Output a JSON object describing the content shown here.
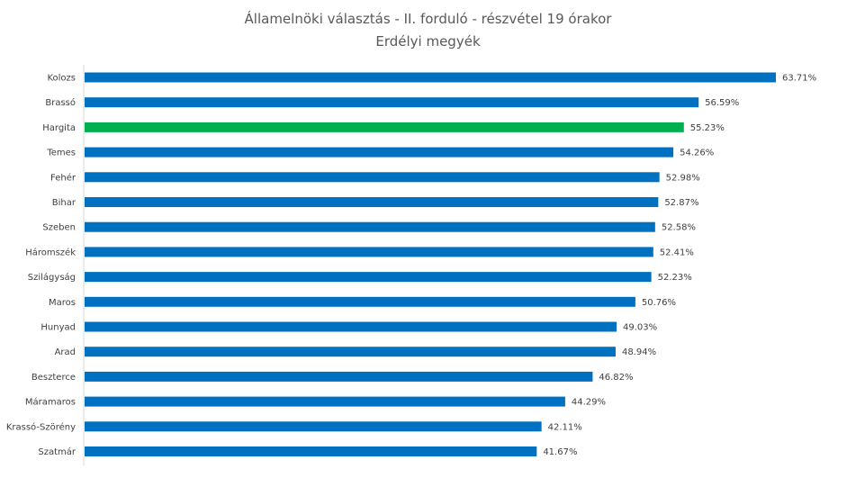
{
  "chart_data": {
    "type": "bar",
    "orientation": "horizontal",
    "title": "Államelnöki választás - II. forduló - részvétel 19 órakor",
    "subtitle": "Erdélyi megyék",
    "categories": [
      "Kolozs",
      "Brassó",
      "Hargita",
      "Temes",
      "Fehér",
      "Bihar",
      "Szeben",
      "Háromszék",
      "Szilágyság",
      "Maros",
      "Hunyad",
      "Arad",
      "Beszterce",
      "Máramaros",
      "Krassó-Szörény",
      "Szatmár"
    ],
    "values": [
      63.71,
      56.59,
      55.23,
      54.26,
      52.98,
      52.87,
      52.58,
      52.41,
      52.23,
      50.76,
      49.03,
      48.94,
      46.82,
      44.29,
      42.11,
      41.67
    ],
    "value_labels": [
      "63.71%",
      "56.59%",
      "55.23%",
      "54.26%",
      "52.98%",
      "52.87%",
      "52.58%",
      "52.41%",
      "52.23%",
      "50.76%",
      "49.03%",
      "48.94%",
      "46.82%",
      "44.29%",
      "42.11%",
      "41.67%"
    ],
    "xlim": [
      0,
      70
    ],
    "grid": false,
    "legend": "none",
    "colors": {
      "bar": "#0070C0",
      "highlight": "#00B050",
      "axis": "#D9D9D9"
    },
    "highlight_category": "Hargita"
  }
}
